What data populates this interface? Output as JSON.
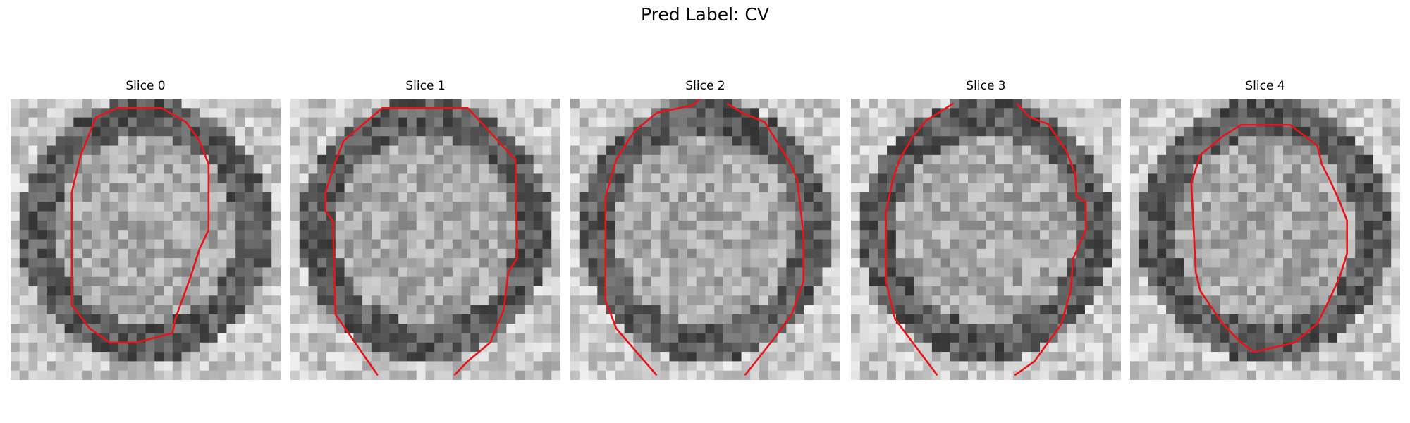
{
  "title": "Pred Label: CV",
  "panels": [
    {
      "title": "Slice 0"
    },
    {
      "title": "Slice 1"
    },
    {
      "title": "Slice 2"
    },
    {
      "title": "Slice 3"
    },
    {
      "title": "Slice 4"
    }
  ]
}
